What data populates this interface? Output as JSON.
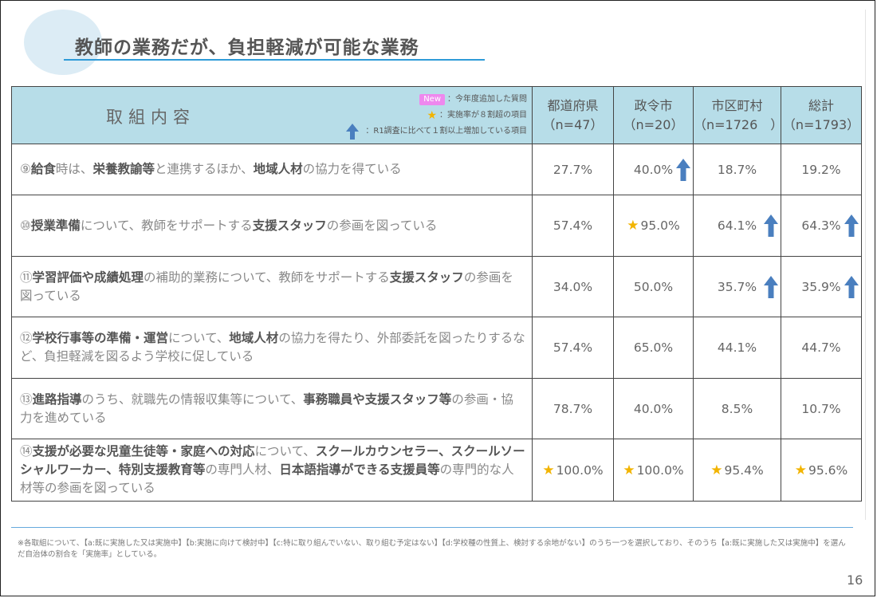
{
  "title": "教師の業務だが、負担軽減が可能な業務",
  "header": {
    "item_label": "取組内容",
    "legend": {
      "new_badge": "New",
      "new_text": "：今年度追加した質問",
      "star_text": "：実施率が８割超の項目",
      "arrow_text": "：R1調査に比べて１割以上増加している項目"
    },
    "columns": [
      {
        "name": "都道府県",
        "n": "（n=47）"
      },
      {
        "name": "政令市",
        "n": "（n=20）"
      },
      {
        "name": "市区町村",
        "n": "（n=1726　）"
      },
      {
        "name": "総計",
        "n": "（n=1793）"
      }
    ]
  },
  "rows": [
    {
      "segments": [
        {
          "t": "⑨",
          "b": false
        },
        {
          "t": "給食",
          "b": true
        },
        {
          "t": "時は、",
          "b": false
        },
        {
          "t": "栄養教諭等",
          "b": true
        },
        {
          "t": "と連携するほか、",
          "b": false
        },
        {
          "t": "地域人材",
          "b": true
        },
        {
          "t": "の協力を得ている",
          "b": false
        }
      ],
      "values": [
        {
          "text": "27.7%",
          "star": false,
          "arrow": false
        },
        {
          "text": "40.0%",
          "star": false,
          "arrow": true
        },
        {
          "text": "18.7%",
          "star": false,
          "arrow": false
        },
        {
          "text": "19.2%",
          "star": false,
          "arrow": false
        }
      ]
    },
    {
      "segments": [
        {
          "t": "⑩",
          "b": false
        },
        {
          "t": "授業準備",
          "b": true
        },
        {
          "t": "について、教師をサポートする",
          "b": false
        },
        {
          "t": "支援スタッフ",
          "b": true
        },
        {
          "t": "の参画を図っている",
          "b": false
        }
      ],
      "values": [
        {
          "text": "57.4%",
          "star": false,
          "arrow": false
        },
        {
          "text": "95.0%",
          "star": true,
          "arrow": false
        },
        {
          "text": "64.1%",
          "star": false,
          "arrow": true
        },
        {
          "text": "64.3%",
          "star": false,
          "arrow": true
        }
      ]
    },
    {
      "segments": [
        {
          "t": "⑪",
          "b": false
        },
        {
          "t": "学習評価や成績処理",
          "b": true
        },
        {
          "t": "の補助的業務について、教師をサポートする",
          "b": false
        },
        {
          "t": "支援スタッフ",
          "b": true
        },
        {
          "t": "の参画を図っている",
          "b": false
        }
      ],
      "values": [
        {
          "text": "34.0%",
          "star": false,
          "arrow": false
        },
        {
          "text": "50.0%",
          "star": false,
          "arrow": false
        },
        {
          "text": "35.7%",
          "star": false,
          "arrow": true
        },
        {
          "text": "35.9%",
          "star": false,
          "arrow": true
        }
      ]
    },
    {
      "segments": [
        {
          "t": "⑫",
          "b": false
        },
        {
          "t": "学校行事等の準備・運営",
          "b": true
        },
        {
          "t": "について、",
          "b": false
        },
        {
          "t": "地域人材",
          "b": true
        },
        {
          "t": "の協力を得たり、外部委託を図ったりするなど、負担軽減を図るよう学校に促している",
          "b": false
        }
      ],
      "values": [
        {
          "text": "57.4%",
          "star": false,
          "arrow": false
        },
        {
          "text": "65.0%",
          "star": false,
          "arrow": false
        },
        {
          "text": "44.1%",
          "star": false,
          "arrow": false
        },
        {
          "text": "44.7%",
          "star": false,
          "arrow": false
        }
      ]
    },
    {
      "segments": [
        {
          "t": "⑬",
          "b": false
        },
        {
          "t": "進路指導",
          "b": true
        },
        {
          "t": "のうち、就職先の情報収集等について、",
          "b": false
        },
        {
          "t": "事務職員や支援スタッフ等",
          "b": true
        },
        {
          "t": "の参画・協力を進めている",
          "b": false
        }
      ],
      "values": [
        {
          "text": "78.7%",
          "star": false,
          "arrow": false
        },
        {
          "text": "40.0%",
          "star": false,
          "arrow": false
        },
        {
          "text": "8.5%",
          "star": false,
          "arrow": false
        },
        {
          "text": "10.7%",
          "star": false,
          "arrow": false
        }
      ]
    },
    {
      "segments": [
        {
          "t": "⑭",
          "b": false
        },
        {
          "t": "支援が必要な児童生徒等・家庭への対応",
          "b": true
        },
        {
          "t": "について、",
          "b": false
        },
        {
          "t": "スクールカウンセラー、スクールソーシャルワーカー、特別支援教育等",
          "b": true
        },
        {
          "t": "の専門人材、",
          "b": false
        },
        {
          "t": "日本語指導ができる支援員等",
          "b": true
        },
        {
          "t": "の専門的な人材等の参画を図っている",
          "b": false
        }
      ],
      "values": [
        {
          "text": "100.0%",
          "star": true,
          "arrow": false
        },
        {
          "text": "100.0%",
          "star": true,
          "arrow": false
        },
        {
          "text": "95.4%",
          "star": true,
          "arrow": false
        },
        {
          "text": "95.6%",
          "star": true,
          "arrow": false
        }
      ]
    }
  ],
  "footnote": "※各取組について、【a:既に実施した又は実施中】【b:実施に向けて検討中】【c:特に取り組んでいない、取り組む予定はない】【d:学校種の性質上、検討する余地がない】のうち一つを選択しており、そのうち【a:既に実施した又は実施中】を選んだ自治体の割合を「実施率」としている。",
  "page_number": "16",
  "colors": {
    "header_bg": "#b7dde8",
    "title_underline": "#2e9bd8",
    "star": "#f2b400",
    "arrow": "#4a7fbf",
    "new_badge": "#ee88ee"
  }
}
